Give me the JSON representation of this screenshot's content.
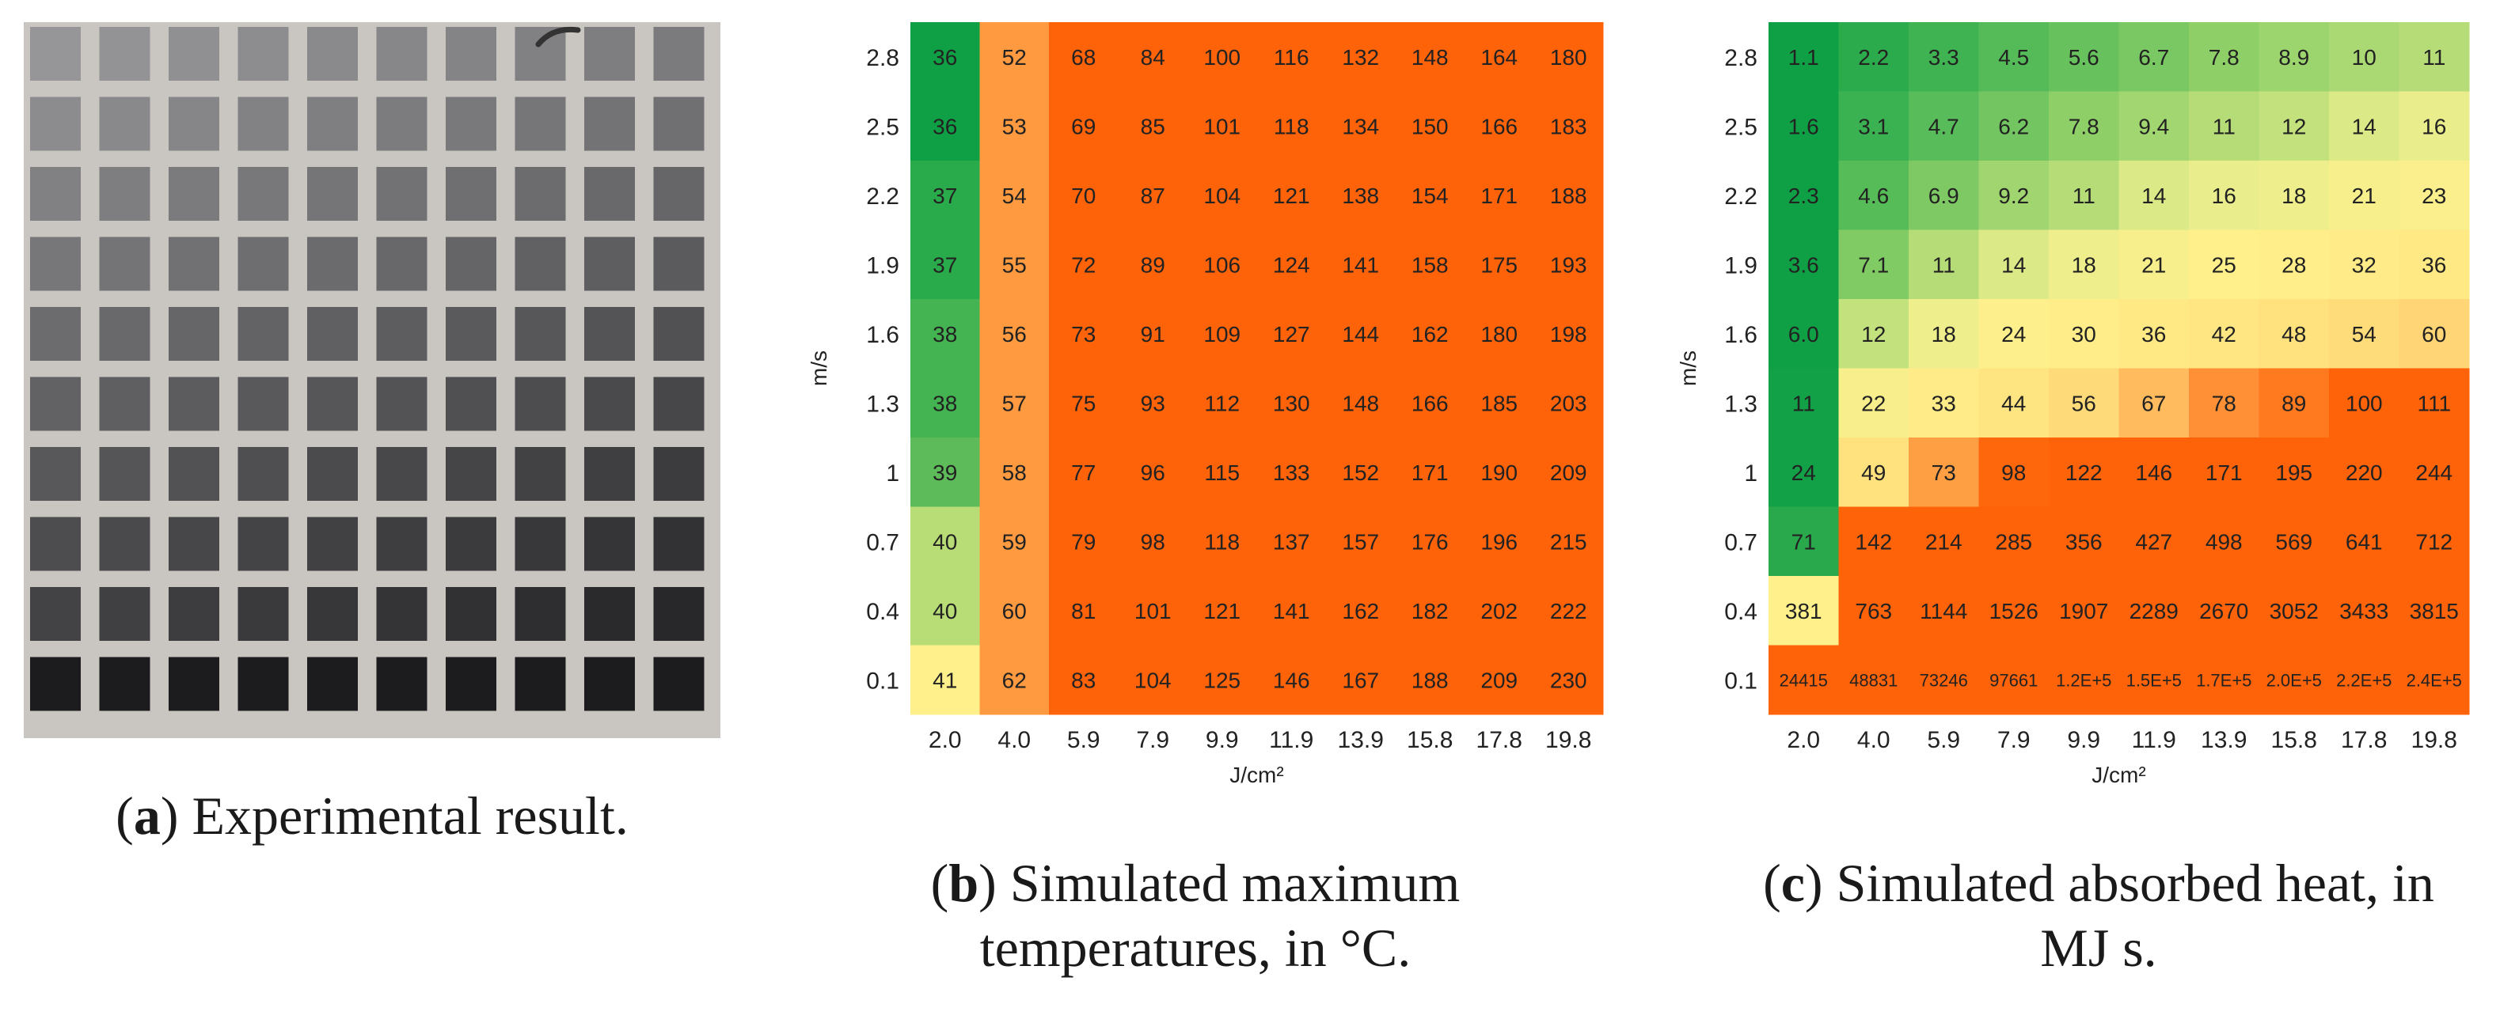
{
  "colors": {
    "green_dark": "#0fa045",
    "green": "#5dbb5a",
    "yellow_green": "#b9dd76",
    "yellow": "#fff08c",
    "orange_light": "#ff9a40",
    "orange": "#ff6309",
    "photo_background": "#c9c6c1"
  },
  "panel_a": {
    "caption_letter": "a",
    "caption_text": "Experimental result."
  },
  "panel_b": {
    "caption_letter": "b",
    "caption_text": "Simulated maximum\ntemperatures, in °C."
  },
  "panel_c": {
    "caption_letter": "c",
    "caption_text": "Simulated absorbed heat, in\nMJ s."
  },
  "chart_data": [
    {
      "type": "heatmap",
      "title": "",
      "xlabel": "J/cm²",
      "ylabel": "m/s",
      "x_categories": [
        "2.0",
        "4.0",
        "5.9",
        "7.9",
        "9.9",
        "11.9",
        "13.9",
        "15.8",
        "17.8",
        "19.8"
      ],
      "y_categories": [
        "2.8",
        "2.5",
        "2.2",
        "1.9",
        "1.6",
        "1.3",
        "1",
        "0.7",
        "0.4",
        "0.1"
      ],
      "values": [
        [
          "36",
          "52",
          "68",
          "84",
          "100",
          "116",
          "132",
          "148",
          "164",
          "180"
        ],
        [
          "36",
          "53",
          "69",
          "85",
          "101",
          "118",
          "134",
          "150",
          "166",
          "183"
        ],
        [
          "37",
          "54",
          "70",
          "87",
          "104",
          "121",
          "138",
          "154",
          "171",
          "188"
        ],
        [
          "37",
          "55",
          "72",
          "89",
          "106",
          "124",
          "141",
          "158",
          "175",
          "193"
        ],
        [
          "38",
          "56",
          "73",
          "91",
          "109",
          "127",
          "144",
          "162",
          "180",
          "198"
        ],
        [
          "38",
          "57",
          "75",
          "93",
          "112",
          "130",
          "148",
          "166",
          "185",
          "203"
        ],
        [
          "39",
          "58",
          "77",
          "96",
          "115",
          "133",
          "152",
          "171",
          "190",
          "209"
        ],
        [
          "40",
          "59",
          "79",
          "98",
          "118",
          "137",
          "157",
          "176",
          "196",
          "215"
        ],
        [
          "40",
          "60",
          "81",
          "101",
          "121",
          "141",
          "162",
          "182",
          "202",
          "222"
        ],
        [
          "41",
          "62",
          "83",
          "104",
          "125",
          "146",
          "167",
          "188",
          "209",
          "230"
        ]
      ]
    },
    {
      "type": "heatmap",
      "title": "",
      "xlabel": "J/cm²",
      "ylabel": "m/s",
      "x_categories": [
        "2.0",
        "4.0",
        "5.9",
        "7.9",
        "9.9",
        "11.9",
        "13.9",
        "15.8",
        "17.8",
        "19.8"
      ],
      "y_categories": [
        "2.8",
        "2.5",
        "2.2",
        "1.9",
        "1.6",
        "1.3",
        "1",
        "0.7",
        "0.4",
        "0.1"
      ],
      "values": [
        [
          "1.1",
          "2.2",
          "3.3",
          "4.5",
          "5.6",
          "6.7",
          "7.8",
          "8.9",
          "10",
          "11"
        ],
        [
          "1.6",
          "3.1",
          "4.7",
          "6.2",
          "7.8",
          "9.4",
          "11",
          "12",
          "14",
          "16"
        ],
        [
          "2.3",
          "4.6",
          "6.9",
          "9.2",
          "11",
          "14",
          "16",
          "18",
          "21",
          "23"
        ],
        [
          "3.6",
          "7.1",
          "11",
          "14",
          "18",
          "21",
          "25",
          "28",
          "32",
          "36"
        ],
        [
          "6.0",
          "12",
          "18",
          "24",
          "30",
          "36",
          "42",
          "48",
          "54",
          "60"
        ],
        [
          "11",
          "22",
          "33",
          "44",
          "56",
          "67",
          "78",
          "89",
          "100",
          "111"
        ],
        [
          "24",
          "49",
          "73",
          "98",
          "122",
          "146",
          "171",
          "195",
          "220",
          "244"
        ],
        [
          "71",
          "142",
          "214",
          "285",
          "356",
          "427",
          "498",
          "569",
          "641",
          "712"
        ],
        [
          "381",
          "763",
          "1144",
          "1526",
          "1907",
          "2289",
          "2670",
          "3052",
          "3433",
          "3815"
        ],
        [
          "24415",
          "48831",
          "73246",
          "97661",
          "1.2E+5",
          "1.5E+5",
          "1.7E+5",
          "2.0E+5",
          "2.2E+5",
          "2.4E+5"
        ]
      ]
    }
  ]
}
